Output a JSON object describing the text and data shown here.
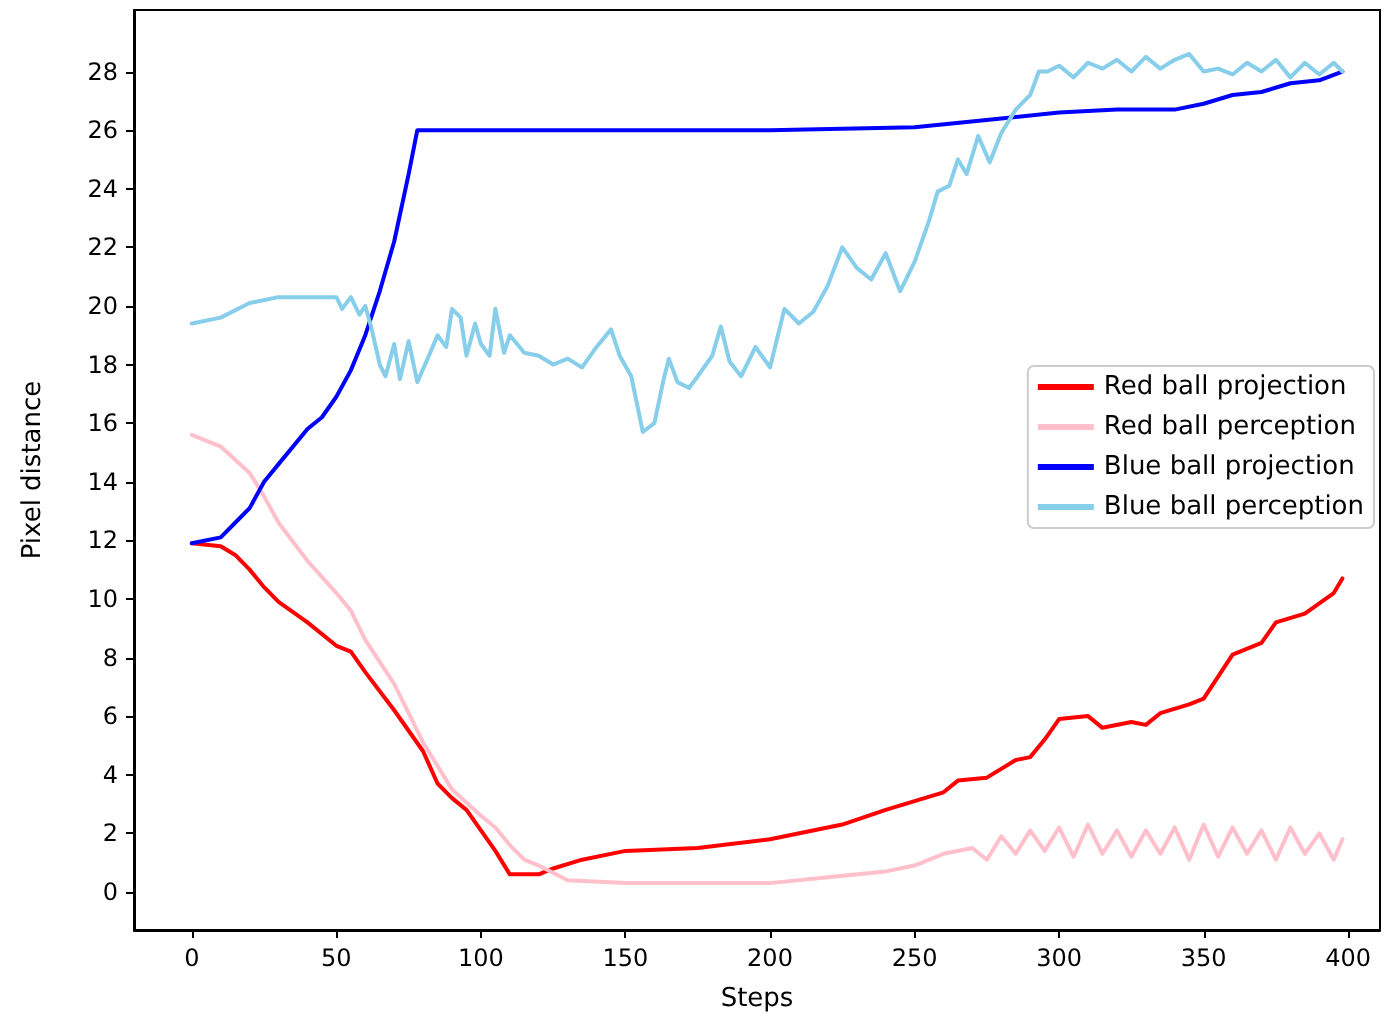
{
  "chart_data": {
    "type": "line",
    "xlabel": "Steps",
    "ylabel": "Pixel distance",
    "xlim": [
      -20,
      411
    ],
    "ylim": [
      -1.3,
      30.1
    ],
    "xticks": [
      0,
      50,
      100,
      150,
      200,
      250,
      300,
      350,
      400
    ],
    "yticks": [
      0,
      2,
      4,
      6,
      8,
      10,
      12,
      14,
      16,
      18,
      20,
      22,
      24,
      26,
      28
    ],
    "grid": false,
    "legend": "right",
    "marker": "none",
    "line_style": "solid",
    "series": [
      {
        "name": "Red ball projection",
        "color": "#ff0000",
        "x": [
          0,
          10,
          15,
          20,
          25,
          30,
          40,
          50,
          55,
          60,
          70,
          80,
          85,
          90,
          95,
          100,
          105,
          110,
          120,
          125,
          135,
          150,
          175,
          200,
          225,
          240,
          250,
          260,
          265,
          275,
          285,
          290,
          295,
          300,
          310,
          315,
          325,
          330,
          335,
          345,
          350,
          360,
          370,
          375,
          385,
          395,
          398
        ],
        "values": [
          11.9,
          11.8,
          11.5,
          11,
          10.4,
          9.9,
          9.2,
          8.4,
          8.2,
          7.5,
          6.2,
          4.8,
          3.7,
          3.2,
          2.8,
          2.1,
          1.4,
          0.6,
          0.6,
          0.8,
          1.1,
          1.4,
          1.5,
          1.8,
          2.3,
          2.8,
          3.1,
          3.4,
          3.8,
          3.9,
          4.5,
          4.6,
          5.2,
          5.9,
          6.0,
          5.6,
          5.8,
          5.7,
          6.1,
          6.4,
          6.6,
          8.1,
          8.5,
          9.2,
          9.5,
          10.2,
          10.7
        ]
      },
      {
        "name": "Red ball perception",
        "color": "#ffc0cb",
        "x": [
          0,
          10,
          20,
          25,
          30,
          40,
          50,
          55,
          60,
          70,
          80,
          90,
          100,
          105,
          110,
          115,
          120,
          130,
          150,
          175,
          200,
          220,
          240,
          250,
          260,
          270,
          275,
          280,
          285,
          290,
          295,
          300,
          305,
          310,
          315,
          320,
          325,
          330,
          335,
          340,
          345,
          350,
          355,
          360,
          365,
          370,
          375,
          380,
          385,
          390,
          395,
          398
        ],
        "values": [
          15.6,
          15.2,
          14.3,
          13.5,
          12.6,
          11.3,
          10.2,
          9.6,
          8.6,
          7.1,
          5.1,
          3.5,
          2.6,
          2.2,
          1.6,
          1.1,
          0.9,
          0.4,
          0.3,
          0.3,
          0.3,
          0.5,
          0.7,
          0.9,
          1.3,
          1.5,
          1.1,
          1.9,
          1.3,
          2.1,
          1.4,
          2.2,
          1.2,
          2.3,
          1.3,
          2.1,
          1.2,
          2.1,
          1.3,
          2.2,
          1.1,
          2.3,
          1.2,
          2.2,
          1.3,
          2.1,
          1.1,
          2.2,
          1.3,
          2.0,
          1.1,
          1.8
        ]
      },
      {
        "name": "Blue ball projection",
        "color": "#0000ff",
        "x": [
          0,
          10,
          15,
          20,
          25,
          30,
          40,
          45,
          50,
          55,
          60,
          65,
          70,
          75,
          78,
          100,
          200,
          250,
          280,
          300,
          320,
          340,
          350,
          360,
          370,
          380,
          390,
          398
        ],
        "values": [
          11.9,
          12.1,
          12.6,
          13.1,
          14.0,
          14.6,
          15.8,
          16.2,
          16.9,
          17.8,
          19.0,
          20.5,
          22.2,
          24.5,
          26.0,
          26.0,
          26.0,
          26.1,
          26.4,
          26.6,
          26.7,
          26.7,
          26.9,
          27.2,
          27.3,
          27.6,
          27.7,
          28.0
        ]
      },
      {
        "name": "Blue ball perception",
        "color": "#87ceeb",
        "x": [
          0,
          10,
          20,
          30,
          40,
          50,
          52,
          55,
          58,
          60,
          62,
          65,
          67,
          70,
          72,
          75,
          78,
          82,
          85,
          88,
          90,
          93,
          95,
          98,
          100,
          103,
          105,
          108,
          110,
          115,
          120,
          125,
          130,
          135,
          140,
          145,
          148,
          152,
          156,
          160,
          163,
          165,
          168,
          172,
          175,
          180,
          183,
          186,
          190,
          195,
          200,
          205,
          210,
          215,
          220,
          225,
          230,
          235,
          240,
          245,
          250,
          255,
          258,
          262,
          265,
          268,
          272,
          276,
          280,
          285,
          290,
          293,
          296,
          300,
          305,
          310,
          315,
          320,
          325,
          330,
          335,
          340,
          345,
          350,
          355,
          360,
          365,
          370,
          375,
          380,
          385,
          390,
          395,
          398
        ],
        "values": [
          19.4,
          19.6,
          20.1,
          20.3,
          20.3,
          20.3,
          19.9,
          20.3,
          19.7,
          20.0,
          19.3,
          18.0,
          17.6,
          18.7,
          17.5,
          18.8,
          17.4,
          18.3,
          19.0,
          18.6,
          19.9,
          19.6,
          18.3,
          19.4,
          18.7,
          18.3,
          19.9,
          18.4,
          19.0,
          18.4,
          18.3,
          18.0,
          18.2,
          17.9,
          18.6,
          19.2,
          18.3,
          17.6,
          15.7,
          16.0,
          17.4,
          18.2,
          17.4,
          17.2,
          17.6,
          18.3,
          19.3,
          18.1,
          17.6,
          18.6,
          17.9,
          19.9,
          19.4,
          19.8,
          20.7,
          22.0,
          21.3,
          20.9,
          21.8,
          20.5,
          21.5,
          22.9,
          23.9,
          24.1,
          25.0,
          24.5,
          25.8,
          24.9,
          25.9,
          26.7,
          27.2,
          28.0,
          28.0,
          28.2,
          27.8,
          28.3,
          28.1,
          28.4,
          28.0,
          28.5,
          28.1,
          28.4,
          28.6,
          28.0,
          28.1,
          27.9,
          28.3,
          28.0,
          28.4,
          27.8,
          28.3,
          27.9,
          28.3,
          28.0
        ]
      }
    ]
  }
}
